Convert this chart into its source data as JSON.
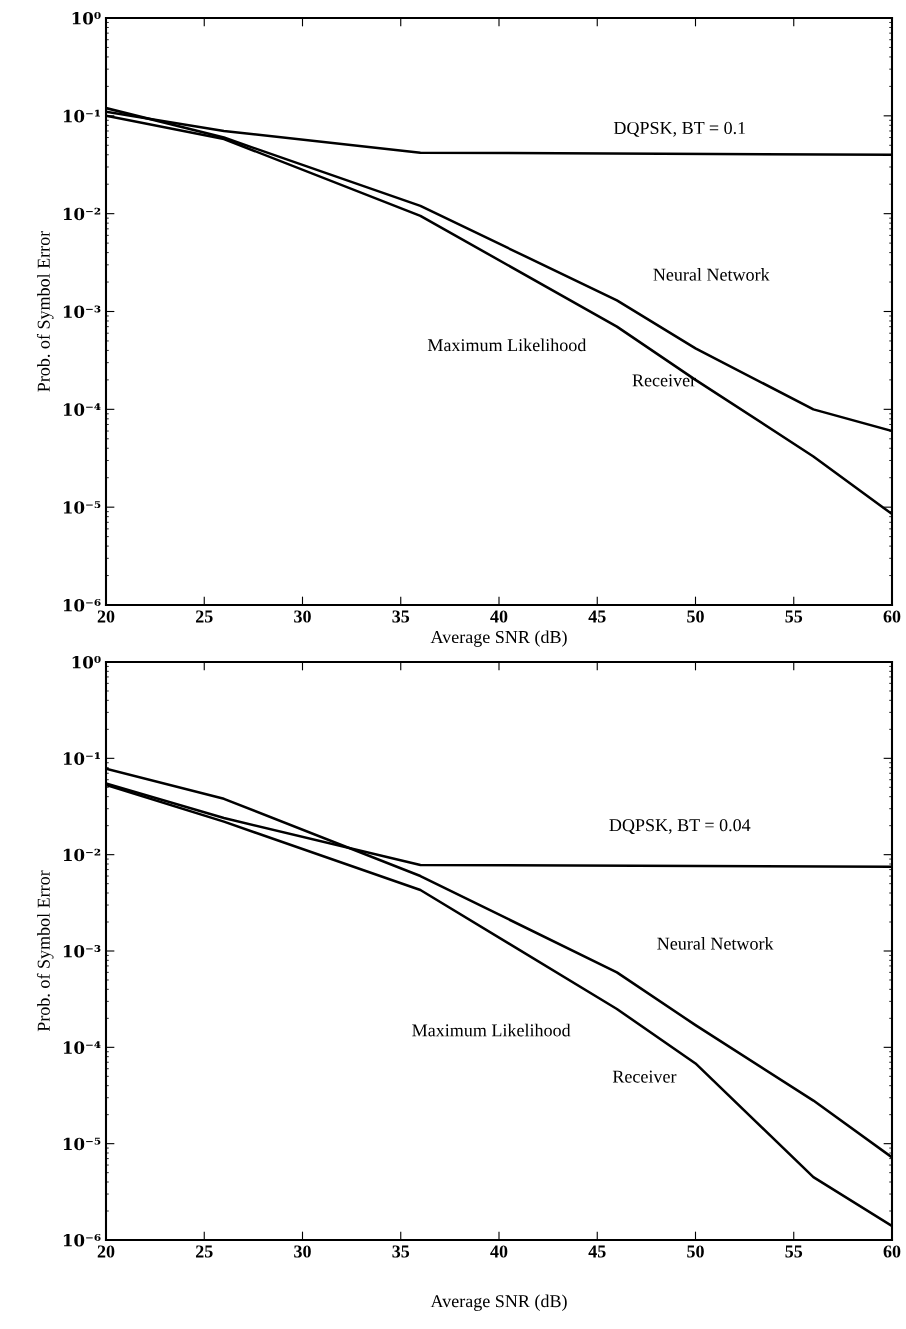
{
  "chart_data": [
    {
      "type": "line",
      "xlabel": "Average SNR (dB)",
      "ylabel": "Prob. of Symbol Error",
      "log": "y",
      "grid": false,
      "legend": false,
      "marker": "none",
      "line_style": "solid",
      "xlim": [
        20,
        60
      ],
      "xticks": [
        20,
        25,
        30,
        35,
        40,
        45,
        50,
        55,
        60
      ],
      "ylim": [
        1e-06,
        1
      ],
      "yticks": [
        {
          "value": 1e-06,
          "label": "10⁻⁶"
        },
        {
          "value": 1e-05,
          "label": "10⁻⁵"
        },
        {
          "value": 0.0001,
          "label": "10⁻⁴"
        },
        {
          "value": 0.001,
          "label": "10⁻³"
        },
        {
          "value": 0.01,
          "label": "10⁻²"
        },
        {
          "value": 0.1,
          "label": "10⁻¹"
        },
        {
          "value": 1,
          "label": "10⁰"
        }
      ],
      "series": [
        {
          "color": "#000000",
          "x": [
            20,
            26,
            36,
            60
          ],
          "values": [
            0.11,
            0.07,
            0.042,
            0.04
          ]
        },
        {
          "color": "#000000",
          "x": [
            20,
            26,
            36,
            46,
            50,
            56,
            60
          ],
          "values": [
            0.12,
            0.06,
            0.012,
            0.0013,
            0.00042,
            0.0001,
            6e-05
          ]
        },
        {
          "color": "#000000",
          "x": [
            20,
            26,
            36,
            46,
            50,
            56,
            60
          ],
          "values": [
            0.1,
            0.058,
            0.0095,
            0.0007,
            0.0002,
            3.3e-05,
            8.5e-06
          ]
        }
      ],
      "annotations": [
        "DQPSK, BT = 0.1",
        "Neural Network",
        "Maximum Likelihood",
        "Receiver"
      ]
    },
    {
      "type": "line",
      "xlabel": "Average SNR (dB)",
      "ylabel": "Prob. of Symbol Error",
      "log": "y",
      "grid": false,
      "legend": false,
      "marker": "none",
      "line_style": "solid",
      "xlim": [
        20,
        60
      ],
      "xticks": [
        20,
        25,
        30,
        35,
        40,
        45,
        50,
        55,
        60
      ],
      "ylim": [
        1e-06,
        1
      ],
      "yticks": [
        {
          "value": 1e-06,
          "label": "10⁻⁶"
        },
        {
          "value": 1e-05,
          "label": "10⁻⁵"
        },
        {
          "value": 0.0001,
          "label": "10⁻⁴"
        },
        {
          "value": 0.001,
          "label": "10⁻³"
        },
        {
          "value": 0.01,
          "label": "10⁻²"
        },
        {
          "value": 0.1,
          "label": "10⁻¹"
        },
        {
          "value": 1,
          "label": "10⁰"
        }
      ],
      "series": [
        {
          "color": "#000000",
          "x": [
            20,
            26,
            36,
            60
          ],
          "values": [
            0.055,
            0.024,
            0.0078,
            0.0075
          ]
        },
        {
          "color": "#000000",
          "x": [
            20,
            26,
            36,
            46,
            50,
            56,
            60
          ],
          "values": [
            0.078,
            0.038,
            0.006,
            0.0006,
            0.00017,
            2.8e-05,
            7.2e-06
          ]
        },
        {
          "color": "#000000",
          "x": [
            20,
            26,
            36,
            46,
            50,
            56,
            60
          ],
          "values": [
            0.053,
            0.022,
            0.0043,
            0.00025,
            6.8e-05,
            4.5e-06,
            1.4e-06
          ]
        }
      ],
      "annotations": [
        "DQPSK, BT = 0.04",
        "Neural Network",
        "Maximum Likelihood",
        "Receiver"
      ]
    }
  ]
}
